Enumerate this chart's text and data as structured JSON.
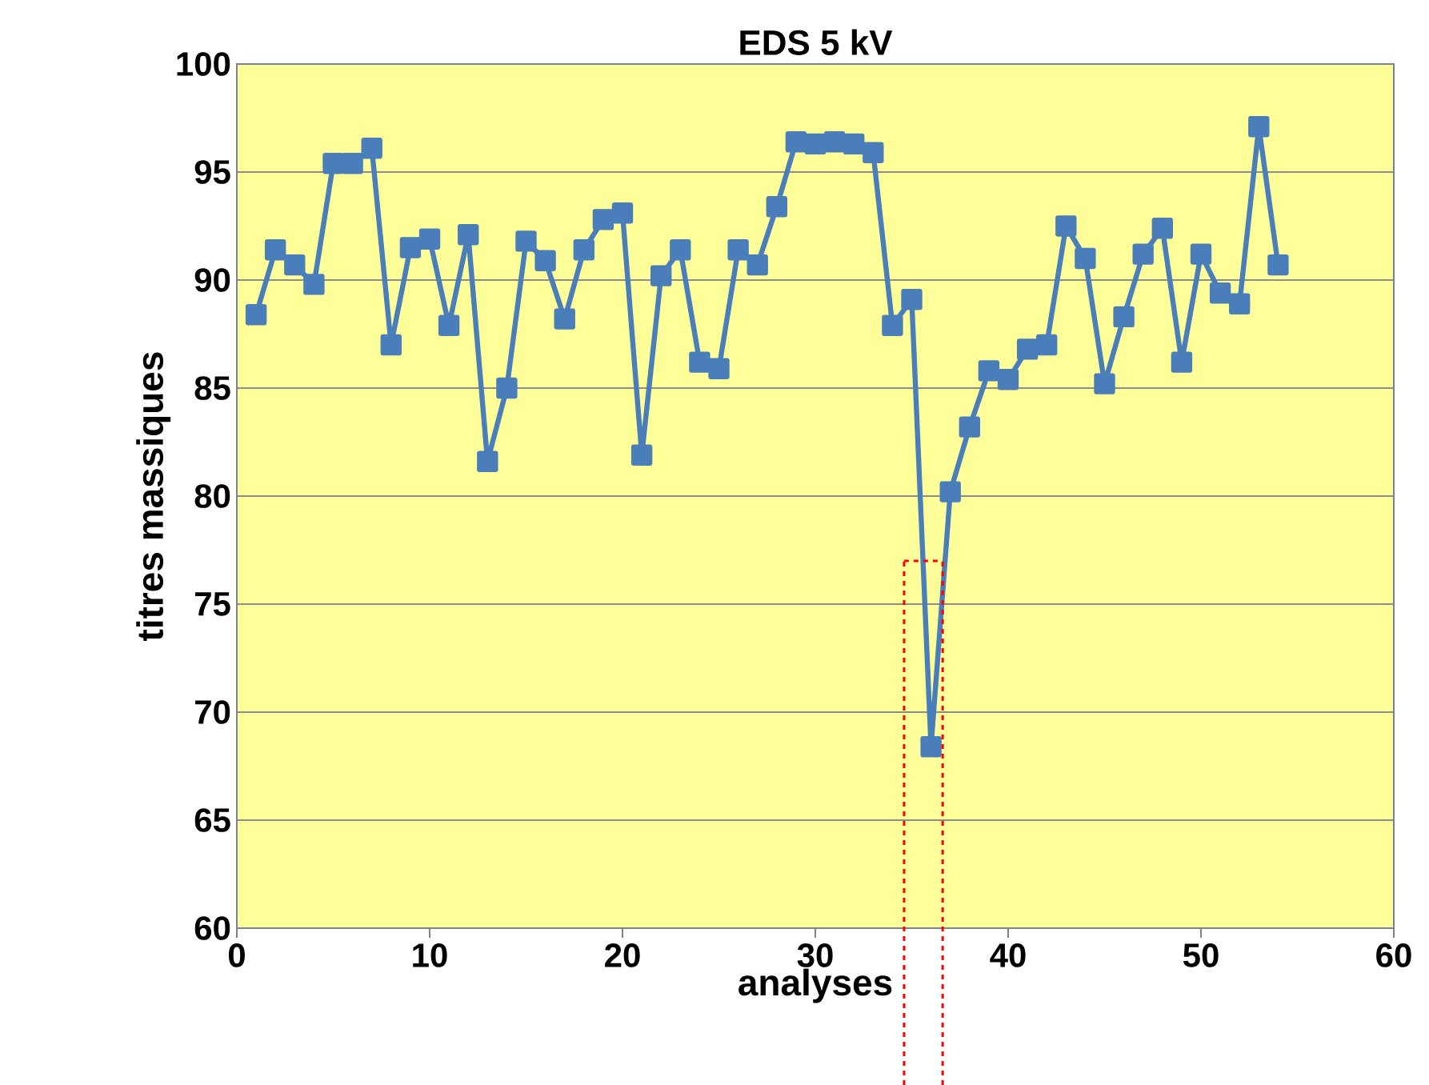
{
  "chart_data": {
    "type": "line",
    "title": "EDS 5 kV",
    "xlabel": "analyses",
    "ylabel": "titres massiques",
    "x": [
      1,
      2,
      3,
      4,
      5,
      6,
      7,
      8,
      9,
      10,
      11,
      12,
      13,
      14,
      15,
      16,
      17,
      18,
      19,
      20,
      21,
      22,
      23,
      24,
      25,
      26,
      27,
      28,
      29,
      30,
      31,
      32,
      33,
      34,
      35,
      36,
      37,
      38,
      39,
      40,
      41,
      42,
      43,
      44,
      45,
      46,
      47,
      48,
      49,
      50,
      51,
      52,
      53,
      54
    ],
    "series": [
      {
        "color": "#4a7ebb",
        "values": [
          88.4,
          91.4,
          90.7,
          89.8,
          95.4,
          95.4,
          96.1,
          87.0,
          91.5,
          91.9,
          87.9,
          92.1,
          81.6,
          85.0,
          91.8,
          90.9,
          88.2,
          91.4,
          92.8,
          93.1,
          81.9,
          90.2,
          91.4,
          86.2,
          85.9,
          91.4,
          90.7,
          93.4,
          96.4,
          96.3,
          96.4,
          96.3,
          95.9,
          87.9,
          89.1,
          68.4,
          80.2,
          83.2,
          85.8,
          85.4,
          86.8,
          87.0,
          92.5,
          91.0,
          85.2,
          88.3,
          91.2,
          92.4,
          86.2,
          91.2,
          89.4,
          88.9,
          97.1,
          90.7
        ]
      }
    ],
    "xlim": [
      0,
      60
    ],
    "xticks": [
      0,
      10,
      20,
      30,
      40,
      50,
      60
    ],
    "ylim": [
      60,
      100
    ],
    "yticks": [
      60,
      65,
      70,
      75,
      80,
      85,
      90,
      95,
      100
    ],
    "ref_lines": [
      {
        "axis": "x",
        "value": 34.6,
        "color": "#ff0000",
        "line_style": "dashed"
      },
      {
        "axis": "x",
        "value": 36.6,
        "color": "#ff0000",
        "line_style": "dashed"
      }
    ],
    "grid": "y",
    "marker": "square",
    "line_style": "solid"
  }
}
